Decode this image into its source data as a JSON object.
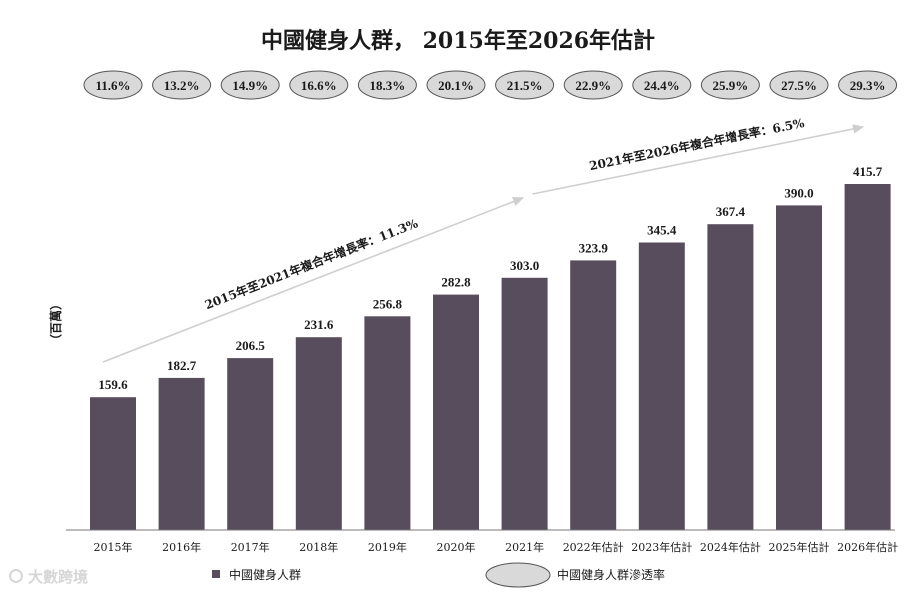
{
  "chart_data": {
    "type": "bar",
    "title": "中國健身人群， 2015年至2026年估計",
    "ylabel": "（百萬）",
    "categories": [
      "2015年",
      "2016年",
      "2017年",
      "2018年",
      "2019年",
      "2020年",
      "2021年",
      "2022年估計",
      "2023年估計",
      "2024年估計",
      "2025年估計",
      "2026年估計"
    ],
    "values": [
      159.6,
      182.7,
      206.5,
      231.6,
      256.8,
      282.8,
      303.0,
      323.9,
      345.4,
      367.4,
      390.0,
      415.7
    ],
    "value_labels": [
      "159.6",
      "182.7",
      "206.5",
      "231.6",
      "256.8",
      "282.8",
      "303.0",
      "323.9",
      "345.4",
      "367.4",
      "390.0",
      "415.7"
    ],
    "penetration_rate": [
      "11.6%",
      "13.2%",
      "14.9%",
      "16.6%",
      "18.3%",
      "20.1%",
      "21.5%",
      "22.9%",
      "24.4%",
      "25.9%",
      "27.5%",
      "29.3%"
    ],
    "ylim": [
      0,
      450
    ],
    "annotations": [
      {
        "text": "2015年至2021年複合年增長率：11.3%",
        "from_index": 0,
        "to_index": 6
      },
      {
        "text": "2021年至2026年複合年增長率：6.5%",
        "from_index": 6,
        "to_index": 11
      }
    ],
    "legend": {
      "bar_label": "中國健身人群",
      "ellipse_label": "中國健身人群滲透率",
      "placement": "bottom"
    },
    "colors": {
      "bar": "#574d5c",
      "ellipse_fill": "#d9d9d9",
      "ellipse_stroke": "#555555",
      "axis": "#777777"
    }
  },
  "watermark": "大數跨境"
}
